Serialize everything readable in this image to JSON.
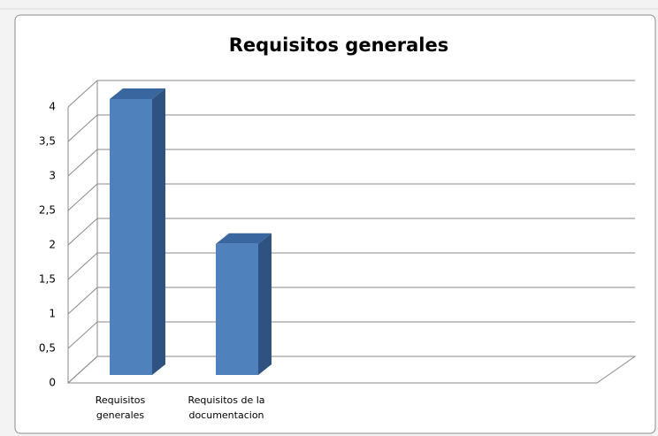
{
  "chart_data": {
    "type": "bar3d",
    "title": "Requisitos generales",
    "categories": [
      "Requisitos generales",
      "Requisitos de la documentacion"
    ],
    "values": [
      4,
      1.9
    ],
    "color": "#4f81bd",
    "ylim": [
      0,
      4
    ],
    "yticks": [
      0,
      {
        "value": 0.5,
        "label": "0,5"
      },
      1,
      {
        "value": 1.5,
        "label": "1,5"
      },
      2,
      {
        "value": 2.5,
        "label": "2,5"
      },
      3,
      {
        "value": 3.5,
        "label": "3,5"
      },
      4
    ],
    "grid": true
  }
}
